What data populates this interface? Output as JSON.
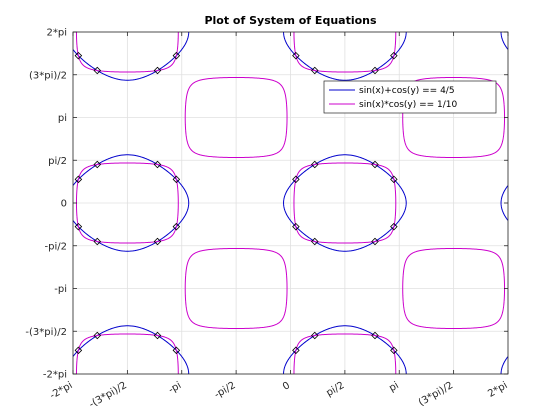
{
  "chart_data": {
    "type": "line",
    "title": "Plot of System of Equations",
    "xlabel": "",
    "ylabel": "",
    "xlim": [
      -6.283185307,
      6.283185307
    ],
    "ylim": [
      -6.283185307,
      6.283185307
    ],
    "grid": true,
    "legend_position": "top-right",
    "xticks": [
      {
        "value": -6.283185307,
        "label": "-2*pi"
      },
      {
        "value": -4.71238898,
        "label": "-(3*pi)/2"
      },
      {
        "value": -3.141592654,
        "label": "-pi"
      },
      {
        "value": -1.570796327,
        "label": "-pi/2"
      },
      {
        "value": 0,
        "label": "0"
      },
      {
        "value": 1.570796327,
        "label": "pi/2"
      },
      {
        "value": 3.141592654,
        "label": "pi"
      },
      {
        "value": 4.71238898,
        "label": "(3*pi)/2"
      },
      {
        "value": 6.283185307,
        "label": "2*pi"
      }
    ],
    "yticks": [
      {
        "value": -6.283185307,
        "label": "-2*pi"
      },
      {
        "value": -4.71238898,
        "label": "-(3*pi)/2"
      },
      {
        "value": -3.141592654,
        "label": "-pi"
      },
      {
        "value": -1.570796327,
        "label": "-pi/2"
      },
      {
        "value": 0,
        "label": "0"
      },
      {
        "value": 1.570796327,
        "label": "pi/2"
      },
      {
        "value": 3.141592654,
        "label": "pi"
      },
      {
        "value": 4.71238898,
        "label": "(3*pi)/2"
      },
      {
        "value": 6.283185307,
        "label": "2*pi"
      }
    ],
    "series": [
      {
        "name": "sin(x)+cos(y) == 4/5",
        "equation": "sin(x)+cos(y)=0.8",
        "color": "#0000cc"
      },
      {
        "name": "sin(x)*cos(y) == 1/10",
        "equation": "sin(x)*cos(y)=0.1",
        "color": "#cc00cc"
      }
    ],
    "intersection_marker": "diamond",
    "intersection_color": "#000000"
  }
}
